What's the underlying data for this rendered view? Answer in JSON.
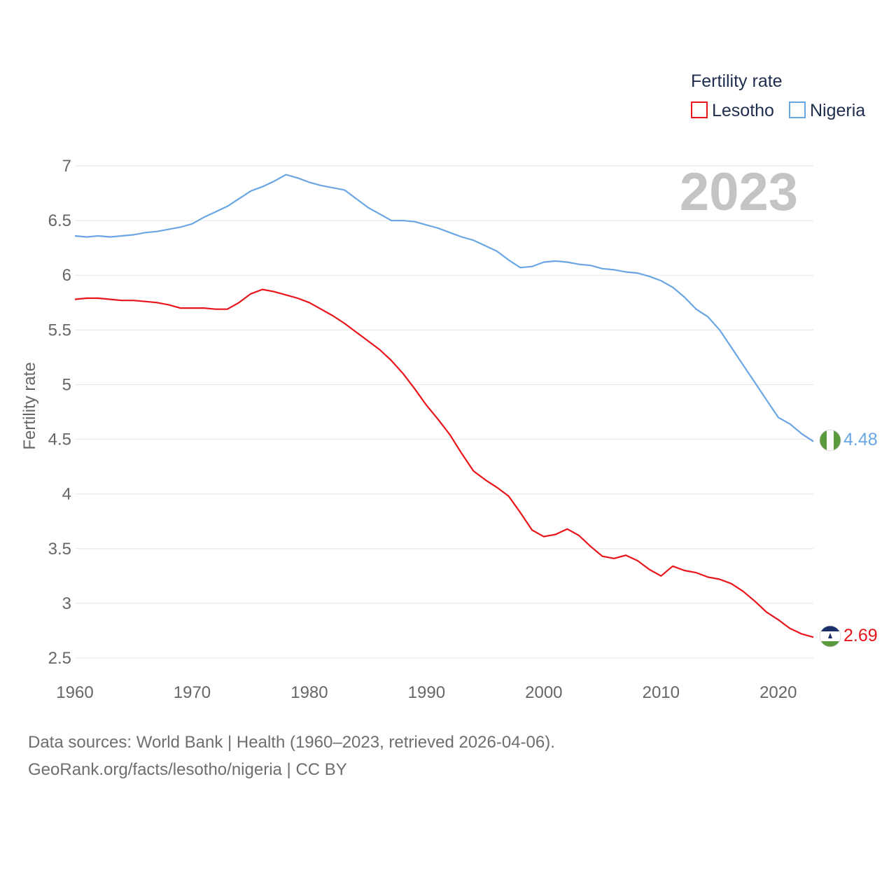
{
  "chart_data": {
    "type": "line",
    "ylabel": "Fertility rate",
    "xlabel": "",
    "xlim": [
      1960,
      2023
    ],
    "ylim": [
      2.5,
      7
    ],
    "x_ticks": [
      1960,
      1970,
      1980,
      1990,
      2000,
      2010,
      2020
    ],
    "y_ticks": [
      2.5,
      3,
      3.5,
      4,
      4.5,
      5,
      5.5,
      6,
      6.5,
      7
    ],
    "y_tick_labels": [
      "2.5",
      "3",
      "3.5",
      "4",
      "4.5",
      "5",
      "5.5",
      "6",
      "6.5",
      "7"
    ],
    "current_year": "2023",
    "legend": {
      "title": "Fertility rate",
      "position": "top-right"
    },
    "series": [
      {
        "name": "Lesotho",
        "color": "#e8141c",
        "flag": "lesotho-flag",
        "end_label": "2.69",
        "points": [
          [
            1960,
            5.78
          ],
          [
            1961,
            5.79
          ],
          [
            1962,
            5.79
          ],
          [
            1963,
            5.78
          ],
          [
            1964,
            5.77
          ],
          [
            1965,
            5.77
          ],
          [
            1966,
            5.76
          ],
          [
            1967,
            5.75
          ],
          [
            1968,
            5.73
          ],
          [
            1969,
            5.7
          ],
          [
            1970,
            5.7
          ],
          [
            1971,
            5.7
          ],
          [
            1972,
            5.69
          ],
          [
            1973,
            5.69
          ],
          [
            1974,
            5.75
          ],
          [
            1975,
            5.83
          ],
          [
            1976,
            5.87
          ],
          [
            1977,
            5.85
          ],
          [
            1978,
            5.82
          ],
          [
            1979,
            5.79
          ],
          [
            1980,
            5.75
          ],
          [
            1981,
            5.69
          ],
          [
            1982,
            5.63
          ],
          [
            1983,
            5.56
          ],
          [
            1984,
            5.48
          ],
          [
            1985,
            5.4
          ],
          [
            1986,
            5.32
          ],
          [
            1987,
            5.22
          ],
          [
            1988,
            5.1
          ],
          [
            1989,
            4.96
          ],
          [
            1990,
            4.81
          ],
          [
            1991,
            4.68
          ],
          [
            1992,
            4.54
          ],
          [
            1993,
            4.37
          ],
          [
            1994,
            4.21
          ],
          [
            1995,
            4.13
          ],
          [
            1996,
            4.06
          ],
          [
            1997,
            3.98
          ],
          [
            1998,
            3.83
          ],
          [
            1999,
            3.67
          ],
          [
            2000,
            3.61
          ],
          [
            2001,
            3.63
          ],
          [
            2002,
            3.68
          ],
          [
            2003,
            3.62
          ],
          [
            2004,
            3.52
          ],
          [
            2005,
            3.43
          ],
          [
            2006,
            3.41
          ],
          [
            2007,
            3.44
          ],
          [
            2008,
            3.39
          ],
          [
            2009,
            3.31
          ],
          [
            2010,
            3.25
          ],
          [
            2011,
            3.34
          ],
          [
            2012,
            3.3
          ],
          [
            2013,
            3.28
          ],
          [
            2014,
            3.24
          ],
          [
            2015,
            3.22
          ],
          [
            2016,
            3.18
          ],
          [
            2017,
            3.11
          ],
          [
            2018,
            3.02
          ],
          [
            2019,
            2.92
          ],
          [
            2020,
            2.85
          ],
          [
            2021,
            2.77
          ],
          [
            2022,
            2.72
          ],
          [
            2023,
            2.69
          ]
        ]
      },
      {
        "name": "Nigeria",
        "color": "#6aa6e3",
        "flag": "nigeria-flag",
        "end_label": "4.48",
        "points": [
          [
            1960,
            6.36
          ],
          [
            1961,
            6.35
          ],
          [
            1962,
            6.36
          ],
          [
            1963,
            6.35
          ],
          [
            1964,
            6.36
          ],
          [
            1965,
            6.37
          ],
          [
            1966,
            6.39
          ],
          [
            1967,
            6.4
          ],
          [
            1968,
            6.42
          ],
          [
            1969,
            6.44
          ],
          [
            1970,
            6.47
          ],
          [
            1971,
            6.53
          ],
          [
            1972,
            6.58
          ],
          [
            1973,
            6.63
          ],
          [
            1974,
            6.7
          ],
          [
            1975,
            6.77
          ],
          [
            1976,
            6.81
          ],
          [
            1977,
            6.86
          ],
          [
            1978,
            6.92
          ],
          [
            1979,
            6.89
          ],
          [
            1980,
            6.85
          ],
          [
            1981,
            6.82
          ],
          [
            1982,
            6.8
          ],
          [
            1983,
            6.78
          ],
          [
            1984,
            6.7
          ],
          [
            1985,
            6.62
          ],
          [
            1986,
            6.56
          ],
          [
            1987,
            6.5
          ],
          [
            1988,
            6.5
          ],
          [
            1989,
            6.49
          ],
          [
            1990,
            6.46
          ],
          [
            1991,
            6.43
          ],
          [
            1992,
            6.39
          ],
          [
            1993,
            6.35
          ],
          [
            1994,
            6.32
          ],
          [
            1995,
            6.27
          ],
          [
            1996,
            6.22
          ],
          [
            1997,
            6.14
          ],
          [
            1998,
            6.07
          ],
          [
            1999,
            6.08
          ],
          [
            2000,
            6.12
          ],
          [
            2001,
            6.13
          ],
          [
            2002,
            6.12
          ],
          [
            2003,
            6.1
          ],
          [
            2004,
            6.09
          ],
          [
            2005,
            6.06
          ],
          [
            2006,
            6.05
          ],
          [
            2007,
            6.03
          ],
          [
            2008,
            6.02
          ],
          [
            2009,
            5.99
          ],
          [
            2010,
            5.95
          ],
          [
            2011,
            5.89
          ],
          [
            2012,
            5.8
          ],
          [
            2013,
            5.69
          ],
          [
            2014,
            5.62
          ],
          [
            2015,
            5.5
          ],
          [
            2016,
            5.34
          ],
          [
            2017,
            5.18
          ],
          [
            2018,
            5.02
          ],
          [
            2019,
            4.86
          ],
          [
            2020,
            4.7
          ],
          [
            2021,
            4.64
          ],
          [
            2022,
            4.55
          ],
          [
            2023,
            4.48
          ]
        ]
      }
    ]
  },
  "footer": {
    "sources_line": "Data sources: World Bank | Health (1960–2023, retrieved 2026-04-06).",
    "attribution_line": "GeoRank.org/facts/lesotho/nigeria | CC BY"
  }
}
